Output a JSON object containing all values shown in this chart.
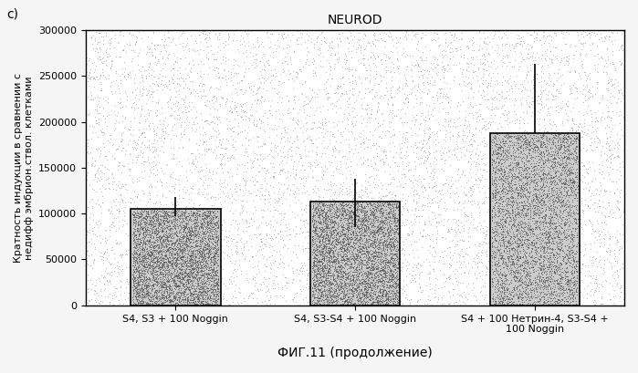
{
  "title": "NEUROD",
  "categories": [
    "S4, S3 + 100 Noggin",
    "S4, S3-S4 + 100 Noggin",
    "S4 + 100 Нетрин-4, S3-S4 +\n100 Noggin"
  ],
  "values": [
    105000,
    113000,
    188000
  ],
  "errors_up": [
    13000,
    25000,
    75000
  ],
  "errors_down": [
    8000,
    28000,
    0
  ],
  "ylabel": "Кратность индукции в сравнении с\nнедифф эмбрион.ствол. клетками",
  "xlabel": "ФИГ.11 (продолжение)",
  "ylim": [
    0,
    300000
  ],
  "yticks": [
    0,
    50000,
    100000,
    150000,
    200000,
    250000,
    300000
  ],
  "label_c": "c)",
  "bar_width": 0.5,
  "fig_width": 6.99,
  "fig_height": 4.09,
  "dpi": 100,
  "bg_noise_density": 8000,
  "bar_noise_density": 5000,
  "bg_color": "#ffffff",
  "fig_bg_color": "#f5f5f5",
  "bar_base_color": "#cccccc",
  "noise_color_bg": "#888888",
  "noise_color_bar": "#555555"
}
